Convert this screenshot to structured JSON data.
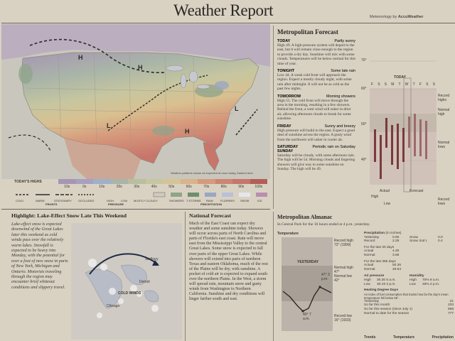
{
  "header": {
    "title": "Weather Report",
    "credit_prefix": "Meteorology by",
    "credit_brand": "AccuWeather"
  },
  "map": {
    "cities": [
      "H",
      "H",
      "L",
      "H",
      "L"
    ],
    "caption": "Weather patterns shown as expected at noon today, Eastern time.",
    "todays_highs_label": "TODAY'S HIGHS",
    "temp_bands": [
      "10s",
      "0s",
      "10s",
      "20s",
      "30s",
      "40s",
      "50s",
      "60s",
      "70s",
      "80s",
      "90s",
      "100s"
    ],
    "fronts_label": "FRONTS",
    "pressure_label": "PRESSURE",
    "precip_label": "PRECIPITATION",
    "legend": [
      "COLD",
      "WARM",
      "STATIONARY",
      "OCCLUDED",
      "HIGH",
      "LOW",
      "MOSTLY CLOUDY",
      "SHOWERS",
      "T-STORMS",
      "RAIN",
      "FLURRIES",
      "SNOW",
      "ICE"
    ]
  },
  "metro_forecast": {
    "heading": "Metropolitan Forecast",
    "entries": [
      {
        "day": "TODAY",
        "cond": "Partly sunny",
        "text": "High 49. A high-pressure system will depart to the east, but it will remain close enough to the region to provide a dry day. Sunshine will mix with some clouds. Temperatures will be below normal for this time of year."
      },
      {
        "day": "TONIGHT",
        "cond": "Some late rain",
        "text": "Low 44. A weak cold front will approach the region. Expect a mostly cloudy night, with some rain after midnight. It will not be as cold as the past few nights."
      },
      {
        "day": "TOMORROW",
        "cond": "Morning showers",
        "text": "High 55. The cold front will move through the area in the morning, resulting in a few showers. Behind the front, a west wind will usher in drier air, allowing afternoon clouds to break for some sunshine."
      },
      {
        "day": "FRIDAY",
        "cond": "Sunny and breezy",
        "text": "High pressure will build to the east. Expect a good deal of sunshine across the region. A gusty wind from the northwest will usher in cooler air."
      },
      {
        "day": "SATURDAY SUNDAY",
        "cond": "Periodic rain on Saturday",
        "text": "Saturday will be cloudy, with some afternoon rain. The high will be 54. Morning clouds and lingering showers will give way to some sunshine on Sunday. The high will be 49."
      }
    ]
  },
  "temp_chart": {
    "today_label": "TODAY",
    "days": [
      "F",
      "S",
      "S",
      "M",
      "T",
      "W",
      "T",
      "F",
      "S",
      "S"
    ],
    "yticks": [
      "70°",
      "60°",
      "50°",
      "40°"
    ],
    "notes": {
      "record_highs": "Record highs",
      "normal_high": "Normal high",
      "normal_lows": "Normal lows",
      "record_lows": "Record lows",
      "actual": "Actual",
      "forecast": "Forecast",
      "high": "High",
      "low": "Low"
    }
  },
  "highlight": {
    "heading": "Highlight: Lake-Effect Snow Late This Weekend",
    "text": "Lake-effect snow is expected downwind of the Great Lakes later this weekend as cold winds pass over the relatively warm lakes. Snowfall is expected to be heavy into Monday, with the potential for over a foot of new snow in parts of New York, Michigan and Ontario. Motorists traveling through the region may encounter brief whiteout conditions and slippery travel.",
    "map_labels": {
      "cold_winds": "COLD WINDS",
      "sudbury": "Sudbury",
      "chicago": "Chicago",
      "detroit": "Detroit"
    }
  },
  "national": {
    "heading": "National Forecast",
    "text": "Much of the East Coast can expect dry weather and some sunshine today. Showers will occur across parts of North Carolina and parts of Florida's east coast. Rain will move east from the Mississippi Valley to the central Great Lakes. Some snow is expected to fall over parts of the upper Great Lakes. While showers will extend into parts of northern Texas and eastern Oklahoma, much of the rest of the Plains will be dry, with sunshine. A pocket of cold air is expected to expand south over the northern Plains. In the West, a storm will spread rain, mountain snow and gusty winds from Washington to Northern California. Sunshine and dry conditions will linger farther south and east."
  },
  "almanac": {
    "heading": "Metropolitan Almanac",
    "sub": "In Central Park for the 16 hours ended at 4 p.m. yesterday.",
    "temp_label": "Temperature",
    "yesterday": "YESTERDAY",
    "record_high": "Record high 72° (1999)",
    "normal_high": "Normal high 47°",
    "normal_low": "Normal low 42°",
    "record_low": "Record low 16° (1933)",
    "peak": "47° 3 p.m.",
    "low": "40° 7 a.m.",
    "precip_heading": "Precipitation",
    "precip_unit": "(in inches)",
    "precip_rows": [
      [
        "Yesterday",
        "0.00",
        "Snow",
        "0.0"
      ],
      [
        "Record",
        "2.25",
        "Snow 2nd t.",
        "0.4"
      ]
    ],
    "last30_label": "For the last 30 days",
    "last30": [
      [
        "Actual",
        "4.30"
      ],
      [
        "Normal",
        "3.68"
      ]
    ],
    "last365_label": "For the last 365 days",
    "last365": [
      [
        "Actual",
        "50.36"
      ],
      [
        "Normal",
        "49.94"
      ]
    ],
    "air_label": "Air pressure",
    "air": [
      [
        "High",
        "30.30 6 a.m."
      ],
      [
        "Low",
        "30.19 2 p.m."
      ]
    ],
    "humidity_label": "Humidity",
    "humidity": [
      [
        "High",
        "70% 8 a.m."
      ],
      [
        "Low",
        "48% 2 p.m."
      ]
    ],
    "hdd_heading": "Heating Degree Days",
    "hdd_text": "An index of fuel consumption that tracks how far the day's mean temperature fell below 65°.",
    "hdd_rows": [
      [
        "Yesterday",
        "21"
      ],
      [
        "So far this month",
        "233"
      ],
      [
        "So far this season (since July 1)",
        "568"
      ],
      [
        "Normal to date for the season",
        "777"
      ]
    ],
    "footer": [
      "Trends",
      "Temperature",
      "Precipitation"
    ]
  }
}
